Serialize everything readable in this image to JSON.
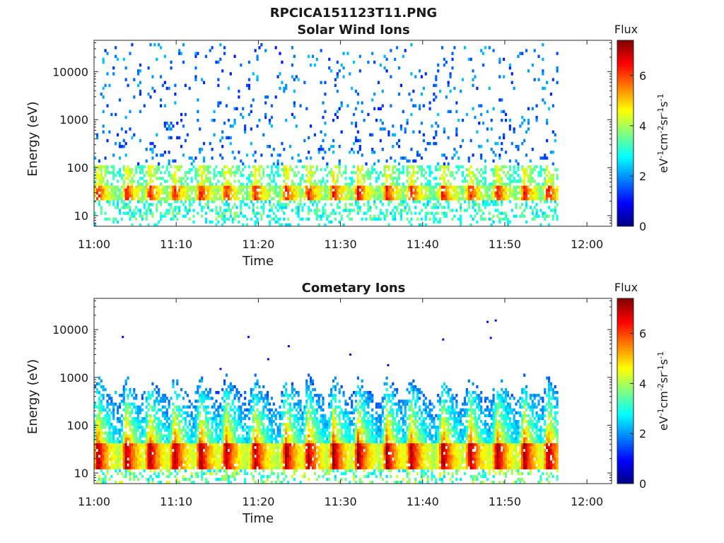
{
  "figure_title": "RPCICA151123T11.PNG",
  "chart_data": [
    {
      "type": "heatmap",
      "title": "Solar Wind Ions",
      "xlabel": "Time",
      "ylabel": "Energy (eV)",
      "x_ticks": [
        "11:00",
        "11:10",
        "11:20",
        "11:30",
        "11:40",
        "11:50",
        "12:00"
      ],
      "xlim_minutes": [
        0,
        63
      ],
      "data_end_minutes": 56.5,
      "y_scale": "log",
      "ylim": [
        6,
        45000
      ],
      "y_ticks": [
        10,
        100,
        1000,
        10000
      ],
      "y_tick_labels": [
        "10",
        "100",
        "1000",
        "10000"
      ],
      "colorbar": {
        "title": "Flux",
        "label_html": "eV<tspan baseline-shift='super' font-size='11'>-1</tspan>cm<tspan baseline-shift='super' font-size='11'>-2</tspan>sr<tspan baseline-shift='super' font-size='11'>-1</tspan>s<tspan baseline-shift='super' font-size='11'>-1</tspan>",
        "range": [
          0,
          7.4
        ],
        "ticks": [
          0,
          2,
          4,
          6
        ],
        "colormap": "jet"
      },
      "peak_times_minutes": [
        0.3,
        3.8,
        6.6,
        9.6,
        12.8,
        15.9,
        19.4,
        23.2,
        25.9,
        29.0,
        32.0,
        35.5,
        38.4,
        42.3,
        45.6,
        48.9,
        52.2,
        55.1
      ],
      "core_energy_eV": [
        20,
        45
      ],
      "peak_flux": 6.2
    },
    {
      "type": "heatmap",
      "title": "Cometary Ions",
      "xlabel": "Time",
      "ylabel": "Energy (eV)",
      "x_ticks": [
        "11:00",
        "11:10",
        "11:20",
        "11:30",
        "11:40",
        "11:50",
        "12:00"
      ],
      "xlim_minutes": [
        0,
        63
      ],
      "data_end_minutes": 56.5,
      "y_scale": "log",
      "ylim": [
        6,
        45000
      ],
      "y_ticks": [
        10,
        100,
        1000,
        10000
      ],
      "y_tick_labels": [
        "10",
        "100",
        "1000",
        "10000"
      ],
      "colorbar": {
        "title": "Flux",
        "label_html": "eV<tspan baseline-shift='super' font-size='11'>-1</tspan>cm<tspan baseline-shift='super' font-size='11'>-2</tspan>sr<tspan baseline-shift='super' font-size='11'>-1</tspan>s<tspan baseline-shift='super' font-size='11'>-1</tspan>",
        "range": [
          0,
          7.4
        ],
        "ticks": [
          0,
          2,
          4,
          6
        ],
        "colormap": "jet"
      },
      "peak_times_minutes": [
        0.3,
        3.8,
        6.6,
        9.6,
        12.8,
        15.9,
        19.4,
        23.2,
        25.9,
        29.0,
        32.0,
        35.5,
        38.4,
        42.3,
        45.6,
        48.9,
        52.2,
        55.1
      ],
      "core_energy_eV": [
        12,
        45
      ],
      "peak_flux": 7.2,
      "plume_max_energy_eV": 1200,
      "isolated_points": [
        {
          "t": 3.5,
          "e": 7000,
          "v": 1.0
        },
        {
          "t": 18.8,
          "e": 7000,
          "v": 1.0
        },
        {
          "t": 21.2,
          "e": 2400,
          "v": 1.0
        },
        {
          "t": 23.7,
          "e": 4500,
          "v": 1.0
        },
        {
          "t": 15.4,
          "e": 1500,
          "v": 1.0
        },
        {
          "t": 31.2,
          "e": 3000,
          "v": 1.0
        },
        {
          "t": 35.8,
          "e": 1800,
          "v": 1.0
        },
        {
          "t": 42.5,
          "e": 6200,
          "v": 1.0
        },
        {
          "t": 47.9,
          "e": 14500,
          "v": 1.0
        },
        {
          "t": 48.9,
          "e": 15500,
          "v": 1.0
        },
        {
          "t": 48.3,
          "e": 6700,
          "v": 1.0
        }
      ]
    }
  ]
}
